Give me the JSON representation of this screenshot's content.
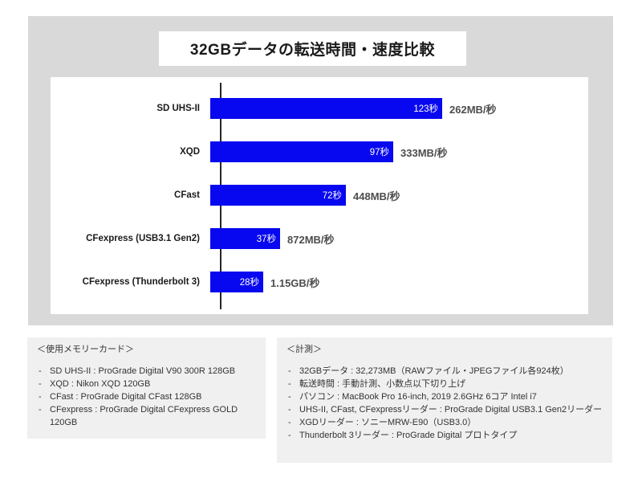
{
  "page": {
    "title": "32GBデータの転送時間・速度比較"
  },
  "chart_data": {
    "type": "bar",
    "orientation": "horizontal",
    "title": "32GBデータの転送時間・速度比較",
    "bar_color": "#0808f0",
    "xlabel": "",
    "ylabel": "",
    "xlim": [
      0,
      195
    ],
    "grid": false,
    "legend": "none",
    "categories": [
      "SD UHS-II",
      "XQD",
      "CFast",
      "CFexpress (USB3.1 Gen2)",
      "CFexpress (Thunderbolt 3)"
    ],
    "series": [
      {
        "name": "転送時間（秒）",
        "values": [
          123,
          97,
          72,
          37,
          28
        ]
      }
    ],
    "bars": [
      {
        "label": "SD UHS-II",
        "seconds": 123,
        "time_label": "123秒",
        "speed_label": "262MB/秒"
      },
      {
        "label": "XQD",
        "seconds": 97,
        "time_label": "97秒",
        "speed_label": "333MB/秒"
      },
      {
        "label": "CFast",
        "seconds": 72,
        "time_label": "72秒",
        "speed_label": "448MB/秒"
      },
      {
        "label": "CFexpress (USB3.1 Gen2)",
        "seconds": 37,
        "time_label": "37秒",
        "speed_label": "872MB/秒"
      },
      {
        "label": "CFexpress (Thunderbolt 3)",
        "seconds": 28,
        "time_label": "28秒",
        "speed_label": "1.15GB/秒"
      }
    ]
  },
  "notes": {
    "memory_cards": {
      "heading": "＜使用メモリーカード＞",
      "items": [
        "SD UHS-II : ProGrade Digital V90 300R 128GB",
        "XQD : Nikon XQD 120GB",
        "CFast : ProGrade Digital CFast 128GB",
        "CFexpress : ProGrade Digital CFexpress GOLD 120GB"
      ]
    },
    "measurement": {
      "heading": "＜計測＞",
      "items": [
        "32GBデータ : 32,273MB（RAWファイル・JPEGファイル各924枚）",
        "転送時間 : 手動計測、小数点以下切り上げ",
        "パソコン : MacBook Pro 16-inch, 2019 2.6GHz 6コア Intel i7",
        "UHS-II, CFast, CFexpressリーダー : ProGrade Digital  USB3.1 Gen2リーダー",
        "XGDリーダー : ソニーMRW-E90（USB3.0）",
        "Thunderbolt 3リーダー : ProGrade Digital プロトタイプ"
      ]
    }
  },
  "colors": {
    "panel_bg": "#d9d9d9",
    "note_bg": "#f0f0f0",
    "bar_blue": "#0808f0",
    "speed_text": "#4d4d4d"
  }
}
